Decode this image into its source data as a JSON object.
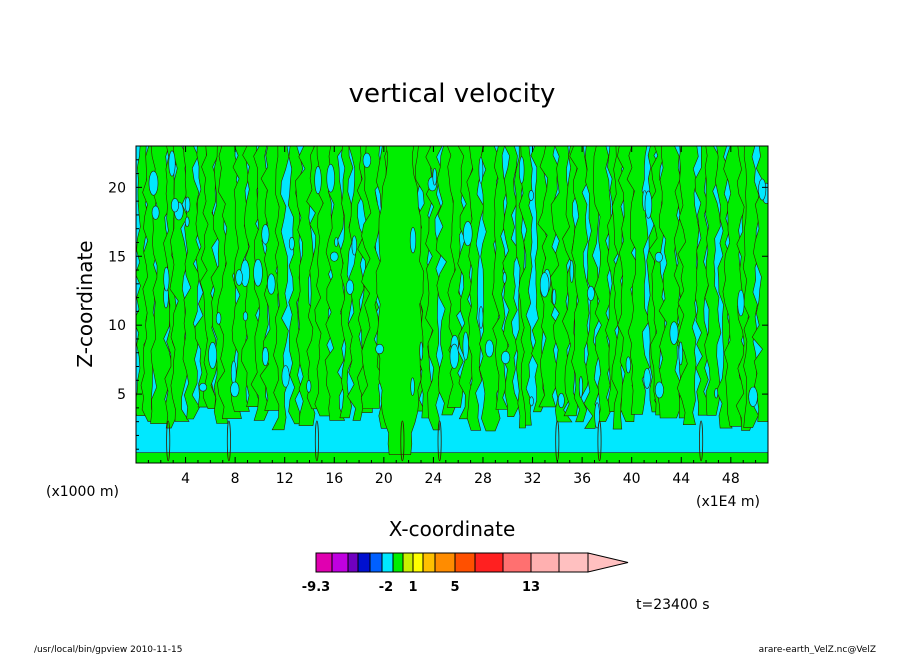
{
  "chart_data": {
    "type": "heatmap",
    "title": "vertical velocity",
    "xlabel": "X-coordinate",
    "ylabel": "Z-coordinate",
    "x_unit_left": "(x1000 m)",
    "x_unit_right": "(x1E4 m)",
    "xlim": [
      0,
      51
    ],
    "ylim": [
      0,
      23
    ],
    "x_ticks": [
      4,
      8,
      12,
      16,
      20,
      24,
      28,
      32,
      36,
      40,
      44,
      48
    ],
    "y_ticks": [
      5,
      10,
      15,
      20
    ],
    "colors": {
      "positive_region": "#00ee00",
      "negative_region": "#00e8ff",
      "contour_line": "#3a1a00"
    },
    "colorbar": {
      "segments": [
        {
          "color": "#e000b0"
        },
        {
          "color": "#c000e0"
        },
        {
          "color": "#7000c0"
        },
        {
          "color": "#0010d0"
        },
        {
          "color": "#0060ff"
        },
        {
          "color": "#00e8ff"
        },
        {
          "color": "#00ee00"
        },
        {
          "color": "#c8f000"
        },
        {
          "color": "#ffff00"
        },
        {
          "color": "#ffc000"
        },
        {
          "color": "#ff8c00"
        },
        {
          "color": "#ff5000"
        },
        {
          "color": "#ff2020"
        },
        {
          "color": "#ff7070"
        },
        {
          "color": "#ffb0b0"
        },
        {
          "color": "#ffc0c0"
        }
      ],
      "tick_labels": [
        "-9.3",
        "-2",
        "1",
        "5",
        "13"
      ]
    },
    "time_label": "t=23400 s"
  },
  "footer": {
    "left": "/usr/local/bin/gpview  2010-11-15",
    "right": "arare-earth_VelZ.nc@VelZ"
  }
}
